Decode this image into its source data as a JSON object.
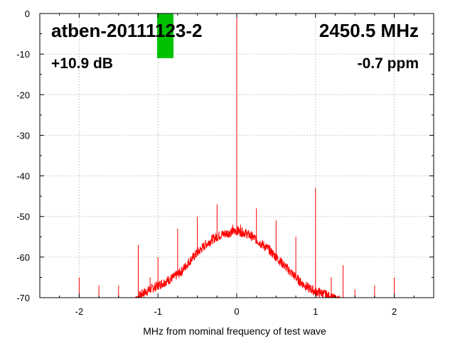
{
  "chart_data": {
    "type": "line",
    "xlabel": "MHz from nominal frequency of test wave",
    "ylabel": "",
    "xlim": [
      -2.5,
      2.5
    ],
    "ylim": [
      -70,
      0
    ],
    "x_ticks": [
      -2,
      -1,
      0,
      1,
      2
    ],
    "y_ticks": [
      0,
      -10,
      -20,
      -30,
      -40,
      -50,
      -60,
      -70
    ],
    "grid": true,
    "series": [
      {
        "color": "#ff0000",
        "baseline_x": [
          -1.3,
          -1.2,
          -1.1,
          -1.0,
          -0.9,
          -0.8,
          -0.7,
          -0.6,
          -0.5,
          -0.4,
          -0.3,
          -0.2,
          -0.1,
          0.0,
          0.1,
          0.2,
          0.3,
          0.4,
          0.5,
          0.6,
          0.7,
          0.8,
          0.9,
          1.0,
          1.1,
          1.2,
          1.35
        ],
        "baseline_y": [
          -71,
          -69,
          -68,
          -67,
          -66,
          -65,
          -63.5,
          -61,
          -59,
          -57,
          -55.5,
          -54.5,
          -54,
          -53.5,
          -54,
          -55,
          -56.5,
          -58,
          -60,
          -62,
          -64,
          -66,
          -67.5,
          -68.5,
          -69,
          -70,
          -71
        ],
        "spurs": [
          {
            "x": 0.0,
            "y": 0
          },
          {
            "x": -0.25,
            "y": -47
          },
          {
            "x": 0.25,
            "y": -48
          },
          {
            "x": -0.5,
            "y": -50
          },
          {
            "x": 1.0,
            "y": -43
          },
          {
            "x": -0.75,
            "y": -53
          },
          {
            "x": 0.5,
            "y": -51
          },
          {
            "x": -0.05,
            "y": -52
          },
          {
            "x": 0.05,
            "y": -52
          },
          {
            "x": -1.0,
            "y": -60
          },
          {
            "x": 0.75,
            "y": -55
          },
          {
            "x": -1.25,
            "y": -57
          },
          {
            "x": 1.35,
            "y": -62
          },
          {
            "x": -2.0,
            "y": -65
          },
          {
            "x": 2.0,
            "y": -65
          },
          {
            "x": -1.5,
            "y": -67
          },
          {
            "x": 1.5,
            "y": -68
          },
          {
            "x": -1.75,
            "y": -67
          },
          {
            "x": 1.75,
            "y": -67
          },
          {
            "x": -1.1,
            "y": -65
          },
          {
            "x": 1.2,
            "y": -65
          }
        ]
      }
    ],
    "level_indicator": {
      "value": -11,
      "color": "#00c000"
    }
  },
  "overlay": {
    "device": "atben-20111123-2",
    "frequency": "2450.5 MHz",
    "gain": "+10.9 dB",
    "ppm": "-0.7 ppm"
  }
}
